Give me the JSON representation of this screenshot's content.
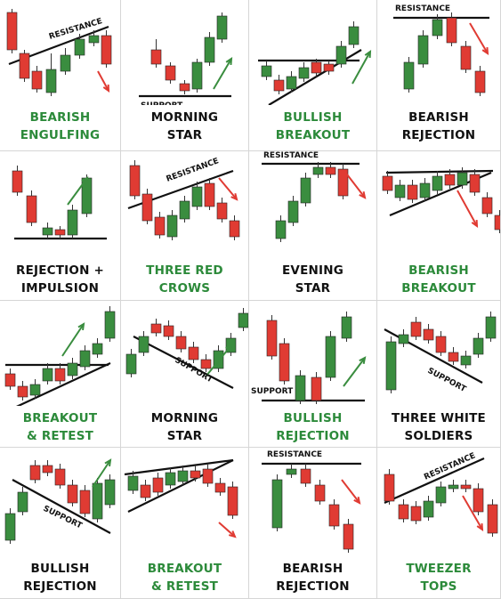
{
  "colors": {
    "bull": "#3a8d3f",
    "bear": "#e03b33",
    "line": "#111111",
    "title_green": "#2c8a3a",
    "title_black": "#111111"
  },
  "panels": [
    {
      "id": "bearish-engulfing",
      "title": [
        "BEARISH",
        "ENGULFING"
      ],
      "title_color": "green",
      "level_labels": [
        "RESISTANCE"
      ]
    },
    {
      "id": "morning-star-1",
      "title": [
        "MORNING",
        "STAR"
      ],
      "title_color": "black",
      "level_labels": [
        "SUPPORT"
      ]
    },
    {
      "id": "bullish-breakout",
      "title": [
        "BULLISH",
        "BREAKOUT"
      ],
      "title_color": "green",
      "level_labels": []
    },
    {
      "id": "bearish-rejection-1",
      "title": [
        "BEARISH",
        "REJECTION"
      ],
      "title_color": "black",
      "level_labels": [
        "RESISTANCE"
      ]
    },
    {
      "id": "rejection-impulsion",
      "title": [
        "REJECTION +",
        "IMPULSION"
      ],
      "title_color": "black",
      "level_labels": []
    },
    {
      "id": "three-red-crows",
      "title": [
        "THREE RED",
        "CROWS"
      ],
      "title_color": "green",
      "level_labels": [
        "RESISTANCE"
      ]
    },
    {
      "id": "evening-star",
      "title": [
        "EVENING",
        "STAR"
      ],
      "title_color": "black",
      "level_labels": [
        "RESISTANCE"
      ]
    },
    {
      "id": "bearish-breakout",
      "title": [
        "BEARISH",
        "BREAKOUT"
      ],
      "title_color": "green",
      "level_labels": []
    },
    {
      "id": "breakout-retest-1",
      "title": [
        "BREAKOUT",
        "& RETEST"
      ],
      "title_color": "green",
      "level_labels": []
    },
    {
      "id": "morning-star-2",
      "title": [
        "MORNING",
        "STAR"
      ],
      "title_color": "black",
      "level_labels": [
        "SUPPORT"
      ]
    },
    {
      "id": "bullish-rejection-1",
      "title": [
        "BULLISH",
        "REJECTION"
      ],
      "title_color": "green",
      "level_labels": [
        "SUPPORT"
      ]
    },
    {
      "id": "three-white-soldiers",
      "title": [
        "THREE WHITE",
        "SOLDIERS"
      ],
      "title_color": "black",
      "level_labels": [
        "SUPPORT"
      ]
    },
    {
      "id": "bullish-rejection-2",
      "title": [
        "BULLISH",
        "REJECTION"
      ],
      "title_color": "black",
      "level_labels": [
        "SUPPORT"
      ]
    },
    {
      "id": "breakout-retest-2",
      "title": [
        "BREAKOUT",
        "& RETEST"
      ],
      "title_color": "green",
      "level_labels": []
    },
    {
      "id": "bearish-rejection-2",
      "title": [
        "BEARISH",
        "REJECTION"
      ],
      "title_color": "black",
      "level_labels": [
        "RESISTANCE"
      ]
    },
    {
      "id": "tweezer-tops",
      "title": [
        "TWEEZER",
        "TOPS"
      ],
      "title_color": "green",
      "level_labels": [
        "RESISTANCE"
      ]
    }
  ]
}
